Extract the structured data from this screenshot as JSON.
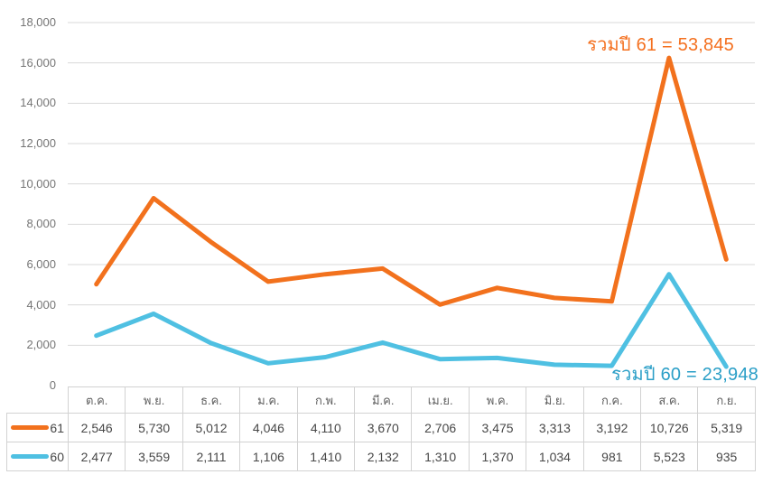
{
  "chart_data": {
    "type": "line",
    "stacked": true,
    "title": "",
    "xlabel": "",
    "ylabel": "",
    "categories": [
      "ต.ค.",
      "พ.ย.",
      "ธ.ค.",
      "ม.ค.",
      "ก.พ.",
      "มี.ค.",
      "เม.ย.",
      "พ.ค.",
      "มิ.ย.",
      "ก.ค.",
      "ส.ค.",
      "ก.ย."
    ],
    "series": [
      {
        "name": "61",
        "color": "#f2711d",
        "values": [
          2546,
          5730,
          5012,
          4046,
          4110,
          3670,
          2706,
          3475,
          3313,
          3192,
          10726,
          5319
        ],
        "total": 53845
      },
      {
        "name": "60",
        "color": "#4fc0e2",
        "values": [
          2477,
          3559,
          2111,
          1106,
          1410,
          2132,
          1310,
          1370,
          1034,
          981,
          5523,
          935
        ],
        "total": 23948
      }
    ],
    "ylim": [
      0,
      18000
    ],
    "ytick_step": 2000,
    "ytick_labels": [
      "18,000",
      "16,000",
      "14,000",
      "12,000",
      "10,000",
      "8,000",
      "6,000",
      "4,000",
      "2,000",
      "0"
    ],
    "grid": "horizontal-only",
    "legend_position": "table-left"
  },
  "annotations": {
    "series61": {
      "text": "รวมปี 61 = 53,845",
      "color": "#f4701f"
    },
    "series60": {
      "text": "รวมปี 60 = 23,948",
      "color": "#2b9fc7"
    }
  },
  "colors": {
    "gridline": "#dadada",
    "table_border": "#d2d2d2",
    "axis_label": "#757575"
  }
}
